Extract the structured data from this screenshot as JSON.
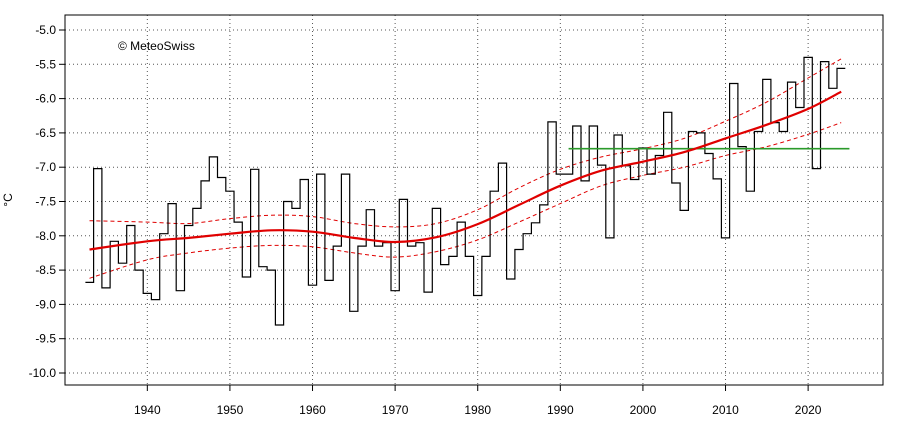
{
  "copyright": "© MeteoSwiss",
  "chart_data": {
    "type": "line",
    "title": "",
    "xlabel": "",
    "ylabel": "°C",
    "xlim": [
      1930,
      2027
    ],
    "ylim": [
      -10.1,
      -4.8
    ],
    "xticks": [
      1940,
      1950,
      1960,
      1970,
      1980,
      1990,
      2000,
      2010,
      2020
    ],
    "yticks": [
      "-5.0",
      "-5.5",
      "-6.0",
      "-6.5",
      "-7.0",
      "-7.5",
      "-8.0",
      "-8.5",
      "-9.0",
      "-9.5",
      "-10.0"
    ],
    "grid": true,
    "colors": {
      "annual": "#000000",
      "trend": "#e00000",
      "band": "#e00000",
      "normal": "#2a9a2a",
      "grid": "#555555"
    },
    "series": [
      {
        "kind": "annual-step",
        "x": [
          1933,
          1934,
          1935,
          1936,
          1937,
          1938,
          1939,
          1940,
          1941,
          1942,
          1943,
          1944,
          1945,
          1946,
          1947,
          1948,
          1949,
          1950,
          1951,
          1952,
          1953,
          1954,
          1955,
          1956,
          1957,
          1958,
          1959,
          1960,
          1961,
          1962,
          1963,
          1964,
          1965,
          1966,
          1967,
          1968,
          1969,
          1970,
          1971,
          1972,
          1973,
          1974,
          1975,
          1976,
          1977,
          1978,
          1979,
          1980,
          1981,
          1982,
          1983,
          1984,
          1985,
          1986,
          1987,
          1988,
          1989,
          1990,
          1991,
          1992,
          1993,
          1994,
          1995,
          1996,
          1997,
          1998,
          1999,
          2000,
          2001,
          2002,
          2003,
          2004,
          2005,
          2006,
          2007,
          2008,
          2009,
          2010,
          2011,
          2012,
          2013,
          2014,
          2015,
          2016,
          2017,
          2018,
          2019,
          2020,
          2021,
          2022,
          2023,
          2024
        ],
        "values": [
          -8.68,
          -7.02,
          -8.76,
          -8.08,
          -8.4,
          -7.85,
          -8.5,
          -8.84,
          -8.93,
          -7.97,
          -7.53,
          -8.8,
          -7.85,
          -7.6,
          -7.2,
          -6.85,
          -7.15,
          -7.35,
          -7.8,
          -8.6,
          -7.03,
          -8.45,
          -8.5,
          -9.3,
          -7.5,
          -7.6,
          -7.18,
          -8.72,
          -7.1,
          -8.65,
          -8.15,
          -7.1,
          -9.1,
          -8.15,
          -7.62,
          -8.15,
          -8.1,
          -8.8,
          -7.47,
          -8.15,
          -8.1,
          -8.82,
          -7.6,
          -8.42,
          -8.3,
          -7.8,
          -8.3,
          -8.87,
          -8.3,
          -7.35,
          -6.94,
          -8.63,
          -8.2,
          -7.97,
          -7.81,
          -7.55,
          -6.34,
          -7.1,
          -7.1,
          -6.4,
          -7.2,
          -6.4,
          -6.97,
          -8.03,
          -6.53,
          -6.98,
          -7.18,
          -6.72,
          -7.1,
          -6.83,
          -6.2,
          -7.23,
          -7.63,
          -6.48,
          -6.5,
          -6.8,
          -7.17,
          -8.03,
          -5.78,
          -6.7,
          -7.35,
          -6.48,
          -5.72,
          -6.35,
          -6.48,
          -5.76,
          -6.13,
          -5.4,
          -7.02,
          -5.46,
          -5.85,
          -5.56
        ]
      },
      {
        "kind": "trend",
        "x": [
          1933,
          1940,
          1945,
          1950,
          1955,
          1960,
          1965,
          1970,
          1975,
          1980,
          1985,
          1990,
          1995,
          2000,
          2005,
          2010,
          2015,
          2020,
          2024
        ],
        "values": [
          -8.2,
          -8.08,
          -8.03,
          -7.97,
          -7.92,
          -7.94,
          -8.03,
          -8.09,
          -8.02,
          -7.83,
          -7.55,
          -7.27,
          -7.05,
          -6.92,
          -6.78,
          -6.58,
          -6.38,
          -6.15,
          -5.9
        ]
      },
      {
        "kind": "band-upper",
        "x": [
          1933,
          1940,
          1945,
          1950,
          1955,
          1960,
          1965,
          1970,
          1975,
          1980,
          1985,
          1990,
          1995,
          2000,
          2005,
          2010,
          2015,
          2020,
          2024
        ],
        "values": [
          -7.78,
          -7.8,
          -7.82,
          -7.75,
          -7.7,
          -7.72,
          -7.82,
          -7.87,
          -7.82,
          -7.62,
          -7.3,
          -7.03,
          -6.85,
          -6.73,
          -6.58,
          -6.33,
          -6.05,
          -5.7,
          -5.42
        ]
      },
      {
        "kind": "band-lower",
        "x": [
          1933,
          1940,
          1945,
          1950,
          1955,
          1960,
          1965,
          1970,
          1975,
          1980,
          1985,
          1990,
          1995,
          2000,
          2005,
          2010,
          2015,
          2020,
          2024
        ],
        "values": [
          -8.62,
          -8.35,
          -8.25,
          -8.18,
          -8.14,
          -8.16,
          -8.25,
          -8.31,
          -8.23,
          -8.06,
          -7.8,
          -7.53,
          -7.27,
          -7.12,
          -7.0,
          -6.83,
          -6.7,
          -6.52,
          -6.35
        ]
      },
      {
        "kind": "normal",
        "x": [
          1991,
          2025
        ],
        "values": [
          -6.73,
          -6.73
        ]
      }
    ]
  }
}
